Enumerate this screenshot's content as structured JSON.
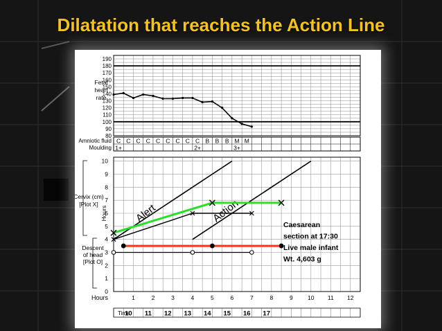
{
  "slide_title": "Dilatation that reaches the Action Line",
  "chart_data": {
    "type": "line",
    "fhr": {
      "row_label": [
        "Fetal",
        "heart",
        "rate"
      ],
      "y_ticks": [
        "190",
        "180",
        "170",
        "160",
        "150",
        "140",
        "130",
        "120",
        "110",
        "100",
        "90",
        "80"
      ],
      "values": [
        139,
        141,
        134,
        139,
        137,
        133,
        133,
        134,
        134,
        128,
        129,
        120,
        105,
        97,
        93
      ],
      "reference_lines": [
        180,
        100
      ]
    },
    "amniotic": {
      "label": "Amniotic fluid",
      "values": [
        "C",
        "C",
        "C",
        "C",
        "C",
        "C",
        "C",
        "C",
        "C",
        "B",
        "B",
        "B",
        "M",
        "M"
      ]
    },
    "moulding": {
      "label": "Moulding",
      "values": [
        "1+",
        "",
        "",
        "",
        "",
        "",
        "",
        "",
        "2+",
        "",
        "",
        "",
        "3+",
        ""
      ]
    },
    "partograph": {
      "cervix_label": [
        "Cervix (cm)",
        "[Plot X]"
      ],
      "descent_label": [
        "Descent",
        "of head",
        "[Plot O]"
      ],
      "hours_axis_label": "Hours",
      "y_ticks": [
        "10",
        "9",
        "8",
        "7",
        "6",
        "5",
        "4",
        "3",
        "2",
        "1",
        "0"
      ],
      "x_label": "Hours",
      "x_ticks": [
        "1",
        "2",
        "3",
        "4",
        "5",
        "6",
        "7",
        "8",
        "9",
        "10",
        "11",
        "12"
      ],
      "time_label": "Time",
      "time_ticks": [
        "10",
        "11",
        "12",
        "13",
        "14",
        "15",
        "16",
        "17"
      ],
      "alert_label": "Alert",
      "action_label": "Action",
      "alert_line": [
        [
          0,
          4
        ],
        [
          6,
          10
        ]
      ],
      "action_line": [
        [
          4,
          4
        ],
        [
          10,
          10
        ]
      ],
      "cervix_black": [
        [
          0,
          4
        ],
        [
          4,
          6
        ],
        [
          7,
          6
        ]
      ],
      "cervix_green": [
        [
          0,
          4.5
        ],
        [
          5,
          6.8
        ],
        [
          8.5,
          6.8
        ]
      ],
      "descent_black": [
        [
          0,
          3
        ],
        [
          4,
          3
        ],
        [
          7,
          3
        ]
      ],
      "descent_red": [
        [
          0.5,
          3.5
        ],
        [
          5,
          3.5
        ],
        [
          8.5,
          3.5
        ]
      ],
      "annotation": [
        "Caesarean",
        "section at 17:30",
        "Live male infant",
        "Wt. 4,603 g"
      ]
    }
  },
  "colors": {
    "title": "#f6c21c",
    "green": "#27e02b",
    "red": "#ee3b1c",
    "black": "#000000"
  }
}
